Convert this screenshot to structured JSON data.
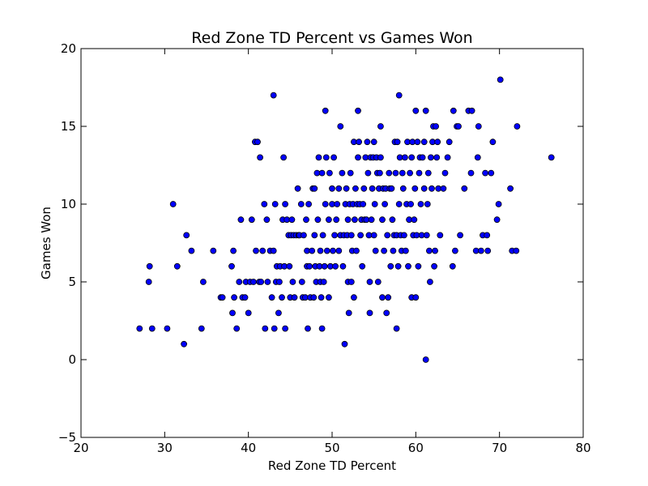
{
  "chart_data": {
    "type": "scatter",
    "title": "Red Zone TD Percent vs Games Won",
    "xlabel": "Red Zone TD Percent",
    "ylabel": "Games Won",
    "xlim": [
      20,
      80
    ],
    "ylim": [
      -5,
      20
    ],
    "xticks": [
      "20",
      "30",
      "40",
      "50",
      "60",
      "70",
      "80"
    ],
    "yticks": [
      "−5",
      "0",
      "5",
      "10",
      "15",
      "20"
    ],
    "grid": false,
    "legend": "none",
    "marker_color": "#0000ff",
    "marker_edge": "#000000",
    "points": [
      [
        27.0,
        2
      ],
      [
        28.5,
        2
      ],
      [
        30.3,
        2
      ],
      [
        28.2,
        6
      ],
      [
        28.1,
        5
      ],
      [
        31.0,
        10
      ],
      [
        31.5,
        6
      ],
      [
        32.3,
        1
      ],
      [
        32.6,
        8
      ],
      [
        33.2,
        7
      ],
      [
        34.4,
        2
      ],
      [
        34.6,
        5
      ],
      [
        35.8,
        7
      ],
      [
        36.7,
        4
      ],
      [
        36.9,
        4
      ],
      [
        38.0,
        6
      ],
      [
        38.2,
        7
      ],
      [
        38.1,
        3
      ],
      [
        38.3,
        4
      ],
      [
        38.6,
        2
      ],
      [
        38.9,
        5
      ],
      [
        39.1,
        9
      ],
      [
        39.3,
        4
      ],
      [
        39.6,
        4
      ],
      [
        39.7,
        5
      ],
      [
        40.0,
        3
      ],
      [
        40.2,
        5
      ],
      [
        40.4,
        9
      ],
      [
        40.6,
        5
      ],
      [
        40.8,
        14
      ],
      [
        41.1,
        14
      ],
      [
        40.9,
        7
      ],
      [
        41.3,
        5
      ],
      [
        41.4,
        13
      ],
      [
        41.5,
        5
      ],
      [
        41.7,
        7
      ],
      [
        41.9,
        10
      ],
      [
        42.0,
        2
      ],
      [
        42.2,
        9
      ],
      [
        42.3,
        5
      ],
      [
        42.6,
        7
      ],
      [
        42.8,
        4
      ],
      [
        43.0,
        7
      ],
      [
        43.0,
        17
      ],
      [
        43.1,
        2
      ],
      [
        43.2,
        10
      ],
      [
        43.3,
        5
      ],
      [
        43.4,
        6
      ],
      [
        43.6,
        3
      ],
      [
        43.7,
        5
      ],
      [
        43.8,
        6
      ],
      [
        44.0,
        4
      ],
      [
        44.1,
        9
      ],
      [
        44.2,
        13
      ],
      [
        44.3,
        6
      ],
      [
        44.4,
        2
      ],
      [
        44.4,
        10
      ],
      [
        44.6,
        9
      ],
      [
        44.8,
        8
      ],
      [
        45.0,
        4
      ],
      [
        44.9,
        6
      ],
      [
        45.1,
        8
      ],
      [
        45.2,
        9
      ],
      [
        45.3,
        5
      ],
      [
        45.4,
        8
      ],
      [
        45.5,
        4
      ],
      [
        45.7,
        8
      ],
      [
        45.9,
        11
      ],
      [
        46.0,
        8
      ],
      [
        46.1,
        8
      ],
      [
        46.3,
        10
      ],
      [
        46.4,
        5
      ],
      [
        46.5,
        4
      ],
      [
        46.6,
        8
      ],
      [
        46.8,
        4
      ],
      [
        46.9,
        9
      ],
      [
        47.0,
        6
      ],
      [
        47.0,
        7
      ],
      [
        47.1,
        2
      ],
      [
        47.2,
        10
      ],
      [
        47.3,
        6
      ],
      [
        47.4,
        4
      ],
      [
        47.6,
        7
      ],
      [
        47.7,
        11
      ],
      [
        47.8,
        4
      ],
      [
        47.9,
        8
      ],
      [
        47.9,
        11
      ],
      [
        48.0,
        6
      ],
      [
        48.1,
        5
      ],
      [
        48.2,
        12
      ],
      [
        48.3,
        9
      ],
      [
        48.4,
        13
      ],
      [
        48.5,
        6
      ],
      [
        48.6,
        5
      ],
      [
        48.6,
        7
      ],
      [
        48.7,
        4
      ],
      [
        48.8,
        2
      ],
      [
        48.8,
        12
      ],
      [
        48.9,
        8
      ],
      [
        49.0,
        5
      ],
      [
        49.1,
        6
      ],
      [
        49.2,
        10
      ],
      [
        49.3,
        13
      ],
      [
        49.4,
        7
      ],
      [
        49.2,
        16
      ],
      [
        49.6,
        4
      ],
      [
        49.6,
        9
      ],
      [
        49.7,
        12
      ],
      [
        49.8,
        6
      ],
      [
        50.0,
        10
      ],
      [
        50.0,
        11
      ],
      [
        50.1,
        7
      ],
      [
        50.2,
        13
      ],
      [
        50.3,
        8
      ],
      [
        50.4,
        6
      ],
      [
        50.5,
        9
      ],
      [
        50.6,
        10
      ],
      [
        50.8,
        11
      ],
      [
        50.8,
        7
      ],
      [
        51.0,
        8
      ],
      [
        51.0,
        15
      ],
      [
        51.2,
        12
      ],
      [
        51.3,
        6
      ],
      [
        51.4,
        8
      ],
      [
        51.5,
        1
      ],
      [
        51.6,
        10
      ],
      [
        51.7,
        11
      ],
      [
        51.8,
        8
      ],
      [
        51.9,
        5
      ],
      [
        51.9,
        9
      ],
      [
        52.0,
        3
      ],
      [
        52.1,
        10
      ],
      [
        52.2,
        12
      ],
      [
        52.3,
        8
      ],
      [
        52.3,
        5
      ],
      [
        52.4,
        7
      ],
      [
        52.5,
        10
      ],
      [
        52.6,
        14
      ],
      [
        52.6,
        4
      ],
      [
        52.7,
        9
      ],
      [
        52.8,
        11
      ],
      [
        52.9,
        7
      ],
      [
        53.0,
        10
      ],
      [
        53.1,
        13
      ],
      [
        53.1,
        16
      ],
      [
        53.2,
        14
      ],
      [
        53.3,
        10
      ],
      [
        53.4,
        8
      ],
      [
        53.5,
        9
      ],
      [
        53.6,
        6
      ],
      [
        53.7,
        10
      ],
      [
        53.8,
        11
      ],
      [
        53.9,
        9
      ],
      [
        54.0,
        13
      ],
      [
        54.1,
        9
      ],
      [
        54.2,
        14
      ],
      [
        54.3,
        12
      ],
      [
        54.4,
        8
      ],
      [
        54.5,
        3
      ],
      [
        54.5,
        5
      ],
      [
        54.6,
        13
      ],
      [
        54.7,
        9
      ],
      [
        54.8,
        11
      ],
      [
        54.9,
        13
      ],
      [
        55.0,
        8
      ],
      [
        55.0,
        14
      ],
      [
        55.1,
        10
      ],
      [
        55.2,
        7
      ],
      [
        55.3,
        13
      ],
      [
        55.4,
        12
      ],
      [
        55.5,
        5
      ],
      [
        55.6,
        11
      ],
      [
        55.7,
        12
      ],
      [
        55.8,
        13
      ],
      [
        55.8,
        15
      ],
      [
        56.0,
        4
      ],
      [
        56.0,
        9
      ],
      [
        56.1,
        11
      ],
      [
        56.2,
        7
      ],
      [
        56.3,
        10
      ],
      [
        56.4,
        11
      ],
      [
        56.5,
        3
      ],
      [
        56.6,
        8
      ],
      [
        56.7,
        4
      ],
      [
        56.8,
        12
      ],
      [
        56.9,
        11
      ],
      [
        57.0,
        6
      ],
      [
        57.1,
        11
      ],
      [
        57.2,
        9
      ],
      [
        57.3,
        7
      ],
      [
        57.4,
        8
      ],
      [
        57.5,
        14
      ],
      [
        57.6,
        12
      ],
      [
        57.7,
        2
      ],
      [
        57.7,
        8
      ],
      [
        57.8,
        14
      ],
      [
        57.9,
        6
      ],
      [
        58.0,
        17
      ],
      [
        58.0,
        10
      ],
      [
        58.1,
        13
      ],
      [
        58.2,
        8
      ],
      [
        58.3,
        7
      ],
      [
        58.4,
        12
      ],
      [
        58.5,
        11
      ],
      [
        58.6,
        8
      ],
      [
        58.7,
        13
      ],
      [
        58.8,
        7
      ],
      [
        58.9,
        10
      ],
      [
        59.0,
        14
      ],
      [
        59.1,
        6
      ],
      [
        59.2,
        9
      ],
      [
        59.3,
        12
      ],
      [
        59.4,
        10
      ],
      [
        59.5,
        13
      ],
      [
        59.5,
        4
      ],
      [
        59.6,
        14
      ],
      [
        59.7,
        8
      ],
      [
        59.8,
        9
      ],
      [
        59.9,
        11
      ],
      [
        60.0,
        16
      ],
      [
        60.0,
        4
      ],
      [
        60.1,
        8
      ],
      [
        60.2,
        14
      ],
      [
        60.3,
        6
      ],
      [
        60.4,
        12
      ],
      [
        60.5,
        13
      ],
      [
        60.6,
        10
      ],
      [
        60.7,
        8
      ],
      [
        60.8,
        13
      ],
      [
        61.0,
        11
      ],
      [
        61.0,
        14
      ],
      [
        61.2,
        0
      ],
      [
        61.2,
        16
      ],
      [
        61.3,
        8
      ],
      [
        61.4,
        10
      ],
      [
        61.5,
        12
      ],
      [
        61.6,
        7
      ],
      [
        61.7,
        5
      ],
      [
        61.8,
        13
      ],
      [
        61.9,
        11
      ],
      [
        62.0,
        14
      ],
      [
        62.1,
        15
      ],
      [
        62.2,
        6
      ],
      [
        62.3,
        7
      ],
      [
        62.4,
        15
      ],
      [
        62.5,
        13
      ],
      [
        62.6,
        14
      ],
      [
        62.7,
        11
      ],
      [
        62.9,
        8
      ],
      [
        63.3,
        11
      ],
      [
        63.5,
        12
      ],
      [
        63.8,
        13
      ],
      [
        64.0,
        14
      ],
      [
        64.4,
        6
      ],
      [
        64.5,
        16
      ],
      [
        64.7,
        7
      ],
      [
        64.9,
        15
      ],
      [
        65.1,
        15
      ],
      [
        65.3,
        8
      ],
      [
        65.8,
        11
      ],
      [
        66.3,
        16
      ],
      [
        66.6,
        12
      ],
      [
        66.7,
        16
      ],
      [
        67.2,
        7
      ],
      [
        67.4,
        13
      ],
      [
        67.5,
        15
      ],
      [
        67.8,
        7
      ],
      [
        68.0,
        8
      ],
      [
        68.3,
        12
      ],
      [
        68.5,
        8
      ],
      [
        68.6,
        7
      ],
      [
        69.0,
        12
      ],
      [
        69.2,
        14
      ],
      [
        69.7,
        9
      ],
      [
        69.9,
        10
      ],
      [
        70.1,
        18
      ],
      [
        71.3,
        11
      ],
      [
        71.5,
        7
      ],
      [
        72.0,
        7
      ],
      [
        72.1,
        15
      ],
      [
        76.2,
        13
      ]
    ]
  }
}
